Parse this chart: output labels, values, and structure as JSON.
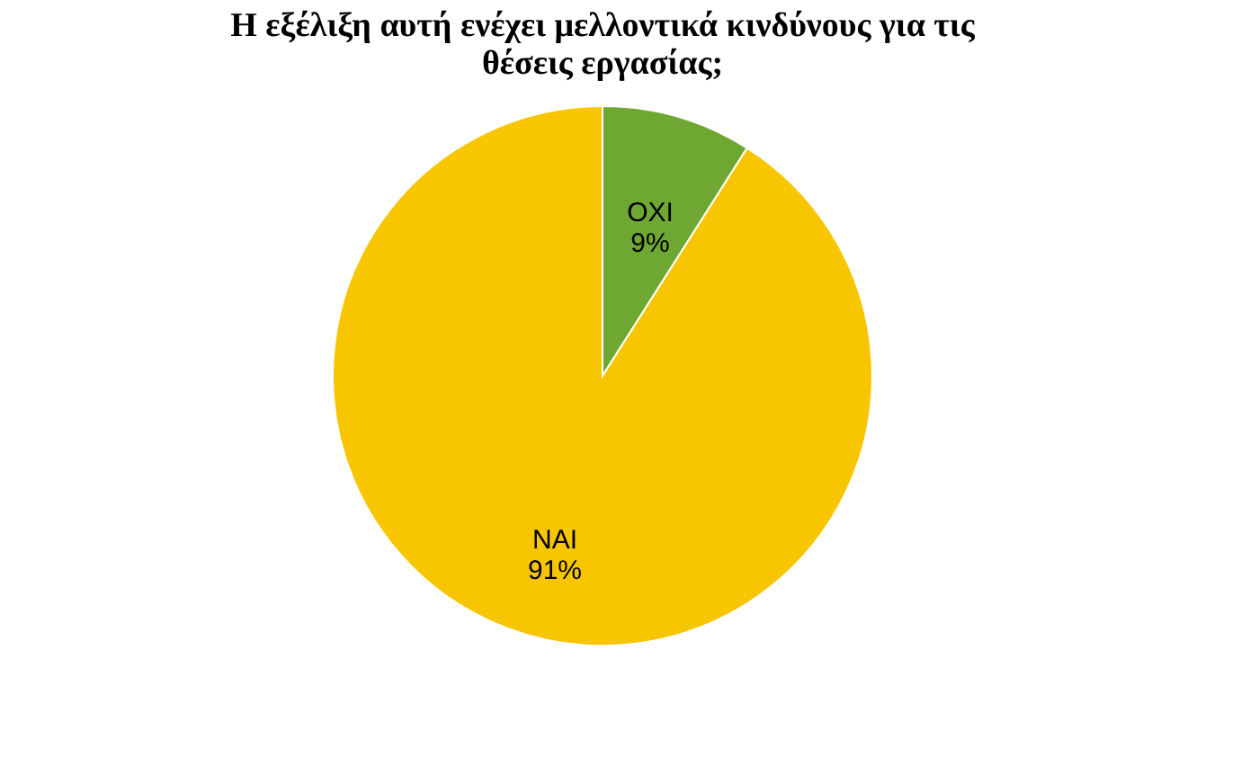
{
  "chart_data": {
    "type": "pie",
    "title": "Η εξέλιξη αυτή ενέχει μελλοντικά κινδύνους για τις θέσεις εργασίας;",
    "categories": [
      "ΟΧΙ",
      "ΝΑΙ"
    ],
    "values": [
      9,
      91
    ],
    "value_labels": [
      "9%",
      "91%"
    ],
    "colors": [
      "#6ea832",
      "#f7c600"
    ],
    "legend": false
  }
}
